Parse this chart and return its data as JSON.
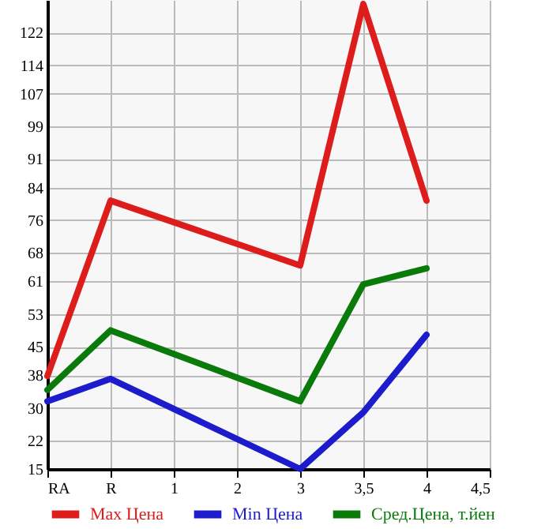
{
  "chart_data": {
    "type": "line",
    "categories": [
      "RA",
      "R",
      "1",
      "2",
      "3",
      "3,5",
      "4",
      "4,5"
    ],
    "series": [
      {
        "name": "Max Цена",
        "color": "#dd1c1c",
        "values": [
          37.8,
          80.8,
          null,
          null,
          64.9,
          129,
          80.8,
          null
        ]
      },
      {
        "name": "Min Цена",
        "color": "#1c1ccc",
        "values": [
          31.6,
          37.1,
          null,
          null,
          15,
          28.9,
          47.9,
          null
        ]
      },
      {
        "name": "Сред.Цена, т.йен",
        "color": "#0a7a0a",
        "values": [
          34.4,
          49,
          null,
          null,
          31.6,
          60.3,
          64.2,
          null
        ]
      }
    ],
    "ylim": [
      15,
      130
    ],
    "yticks": [
      15,
      22,
      30,
      38,
      45,
      53,
      61,
      68,
      76,
      84,
      91,
      99,
      107,
      114,
      122
    ],
    "grid": true,
    "legend": "bottom",
    "marker": "none",
    "line_style": "solid"
  }
}
